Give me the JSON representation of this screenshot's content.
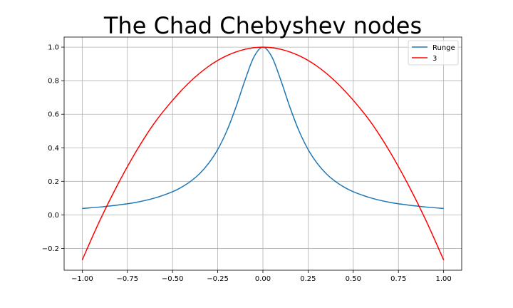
{
  "chart_data": {
    "type": "line",
    "title": "The Chad Chebyshev nodes",
    "xlabel": "",
    "ylabel": "",
    "xlim": [
      -1.1,
      1.1
    ],
    "ylim": [
      -0.33,
      1.06
    ],
    "grid": true,
    "legend_position": "top-right",
    "xticks": [
      -1.0,
      -0.75,
      -0.5,
      -0.25,
      0.0,
      0.25,
      0.5,
      0.75,
      1.0
    ],
    "xtick_labels": [
      "−1.00",
      "−0.75",
      "−0.50",
      "−0.25",
      "0.00",
      "0.25",
      "0.50",
      "0.75",
      "1.00"
    ],
    "yticks": [
      -0.2,
      0.0,
      0.2,
      0.4,
      0.6,
      0.8,
      1.0
    ],
    "ytick_labels": [
      "−0.2",
      "0.0",
      "0.2",
      "0.4",
      "0.6",
      "0.8",
      "1.0"
    ],
    "series": [
      {
        "name": "Runge",
        "color": "#1f77b4",
        "x": [
          -1.0,
          -0.9,
          -0.8,
          -0.7,
          -0.6,
          -0.5,
          -0.45,
          -0.4,
          -0.35,
          -0.3,
          -0.25,
          -0.2,
          -0.15,
          -0.1,
          -0.05,
          0.0,
          0.05,
          0.1,
          0.15,
          0.2,
          0.25,
          0.3,
          0.35,
          0.4,
          0.45,
          0.5,
          0.6,
          0.7,
          0.8,
          0.9,
          1.0
        ],
        "y": [
          0.038,
          0.047,
          0.059,
          0.075,
          0.1,
          0.138,
          0.165,
          0.2,
          0.246,
          0.308,
          0.39,
          0.5,
          0.64,
          0.8,
          0.941,
          1.0,
          0.941,
          0.8,
          0.64,
          0.5,
          0.39,
          0.308,
          0.246,
          0.2,
          0.165,
          0.138,
          0.1,
          0.075,
          0.059,
          0.047,
          0.038
        ]
      },
      {
        "name": "3",
        "color": "#ff0000",
        "x": [
          -1.0,
          -0.9,
          -0.8,
          -0.7,
          -0.6,
          -0.5,
          -0.4,
          -0.3,
          -0.2,
          -0.1,
          0.0,
          0.1,
          0.2,
          0.3,
          0.4,
          0.5,
          0.6,
          0.7,
          0.8,
          0.9,
          1.0
        ],
        "y": [
          -0.269,
          -0.028,
          0.188,
          0.381,
          0.548,
          0.683,
          0.797,
          0.886,
          0.949,
          0.987,
          1.0,
          0.987,
          0.949,
          0.886,
          0.797,
          0.683,
          0.548,
          0.381,
          0.188,
          -0.028,
          -0.269
        ]
      }
    ]
  }
}
